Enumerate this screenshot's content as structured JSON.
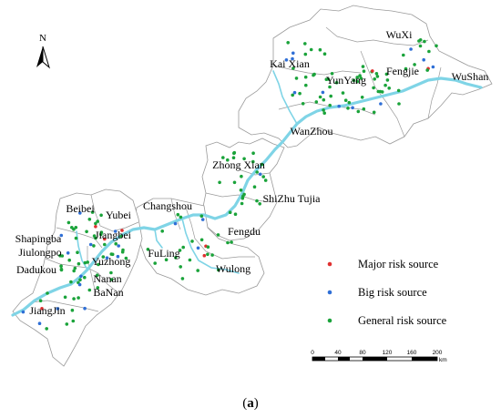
{
  "north_arrow": {
    "label": "N"
  },
  "regions": [
    {
      "id": "wuxi",
      "name": "WuXi"
    },
    {
      "id": "kaixian",
      "name": "Kai Xian"
    },
    {
      "id": "fengjie",
      "name": "Fengjie"
    },
    {
      "id": "wushan",
      "name": "WuShan"
    },
    {
      "id": "yunyang",
      "name": "YunYang"
    },
    {
      "id": "wanzhou",
      "name": "WanZhou"
    },
    {
      "id": "zhongxian",
      "name": "Zhong Xian"
    },
    {
      "id": "shizhu",
      "name": "ShiZhu Tujia"
    },
    {
      "id": "changshou",
      "name": "Changshou"
    },
    {
      "id": "fengdu",
      "name": "Fengdu"
    },
    {
      "id": "fuling",
      "name": "FuLing"
    },
    {
      "id": "wulong",
      "name": "Wulong"
    },
    {
      "id": "beibei",
      "name": "Beibei"
    },
    {
      "id": "yubei",
      "name": "Yubei"
    },
    {
      "id": "shapingba",
      "name": "Shapingba"
    },
    {
      "id": "jiangbei",
      "name": "Jiangbei"
    },
    {
      "id": "jiulongpo",
      "name": "Jiulongpo"
    },
    {
      "id": "yuzhong",
      "name": "Yuzhong"
    },
    {
      "id": "dadukou",
      "name": "Dadukou"
    },
    {
      "id": "nanan",
      "name": "Nanan"
    },
    {
      "id": "banan",
      "name": "BaNan"
    },
    {
      "id": "jiangjin",
      "name": "JiangJin"
    }
  ],
  "legend": {
    "items": [
      {
        "label": "Major risk source",
        "color": "#e03030"
      },
      {
        "label": "Big risk source",
        "color": "#2f6fd6"
      },
      {
        "label": "General risk source",
        "color": "#1aa33a"
      }
    ]
  },
  "scale_bar": {
    "ticks": [
      "0",
      "40",
      "80",
      "120",
      "160",
      "200"
    ],
    "unit": "km"
  },
  "caption": {
    "open": "(",
    "letter": "a",
    "close": ")"
  }
}
